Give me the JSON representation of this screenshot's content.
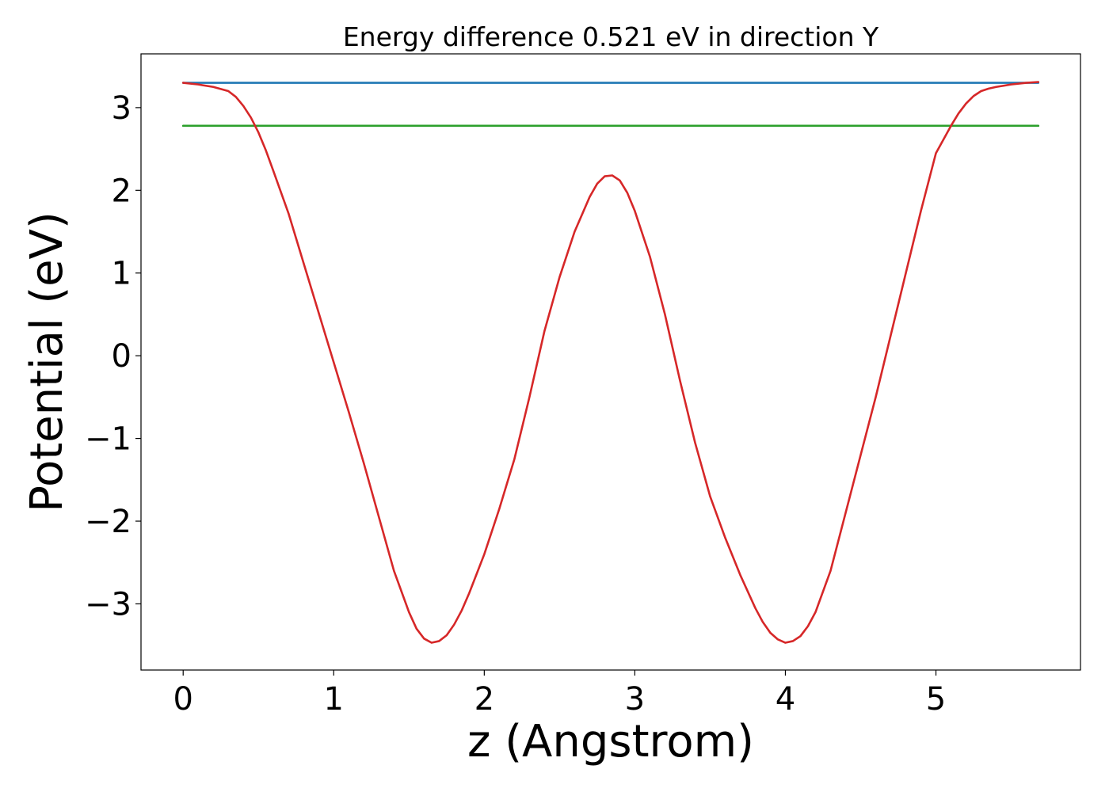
{
  "chart_data": {
    "type": "line",
    "title": "Energy difference 0.521 eV in direction Y",
    "xlabel": "z (Angstrom)",
    "ylabel": "Potential (eV)",
    "xlim": [
      -0.28,
      5.96
    ],
    "ylim": [
      -3.8,
      3.65
    ],
    "xticks": [
      0,
      1,
      2,
      3,
      4,
      5
    ],
    "xtick_labels": [
      "0",
      "1",
      "2",
      "3",
      "4",
      "5"
    ],
    "yticks": [
      -3,
      -2,
      -1,
      0,
      1,
      2,
      3
    ],
    "ytick_labels": [
      "−3",
      "−2",
      "−1",
      "0",
      "1",
      "2",
      "3"
    ],
    "grid": false,
    "legend": "none",
    "series": [
      {
        "color": "#d62728",
        "x": [
          0,
          0.1,
          0.2,
          0.3,
          0.35,
          0.4,
          0.45,
          0.5,
          0.55,
          0.6,
          0.7,
          0.8,
          0.9,
          1.0,
          1.1,
          1.2,
          1.3,
          1.4,
          1.5,
          1.55,
          1.6,
          1.65,
          1.7,
          1.75,
          1.8,
          1.85,
          1.9,
          2.0,
          2.1,
          2.2,
          2.3,
          2.4,
          2.5,
          2.6,
          2.7,
          2.75,
          2.8,
          2.85,
          2.9,
          2.95,
          3.0,
          3.1,
          3.2,
          3.3,
          3.4,
          3.5,
          3.6,
          3.7,
          3.8,
          3.85,
          3.9,
          3.95,
          4.0,
          4.05,
          4.1,
          4.15,
          4.2,
          4.3,
          4.4,
          4.5,
          4.6,
          4.7,
          4.8,
          4.9,
          5.0,
          5.1,
          5.15,
          5.2,
          5.25,
          5.3,
          5.35,
          5.4,
          5.5,
          5.6,
          5.68
        ],
        "y": [
          3.3,
          3.28,
          3.25,
          3.2,
          3.13,
          3.02,
          2.88,
          2.7,
          2.48,
          2.23,
          1.72,
          1.12,
          0.52,
          -0.08,
          -0.68,
          -1.3,
          -1.95,
          -2.6,
          -3.1,
          -3.3,
          -3.42,
          -3.47,
          -3.45,
          -3.38,
          -3.25,
          -3.08,
          -2.87,
          -2.4,
          -1.85,
          -1.25,
          -0.5,
          0.3,
          0.95,
          1.5,
          1.92,
          2.08,
          2.17,
          2.18,
          2.12,
          1.97,
          1.75,
          1.2,
          0.5,
          -0.3,
          -1.05,
          -1.7,
          -2.2,
          -2.65,
          -3.05,
          -3.22,
          -3.35,
          -3.43,
          -3.47,
          -3.45,
          -3.39,
          -3.27,
          -3.1,
          -2.6,
          -1.9,
          -1.2,
          -0.5,
          0.25,
          1.0,
          1.75,
          2.45,
          2.78,
          2.93,
          3.05,
          3.14,
          3.2,
          3.23,
          3.25,
          3.28,
          3.3,
          3.31
        ]
      },
      {
        "color": "#1f77b4",
        "x": [
          0,
          5.68
        ],
        "y": [
          3.3,
          3.3
        ]
      },
      {
        "color": "#2ca02c",
        "x": [
          0,
          5.68
        ],
        "y": [
          2.78,
          2.78
        ]
      }
    ]
  }
}
